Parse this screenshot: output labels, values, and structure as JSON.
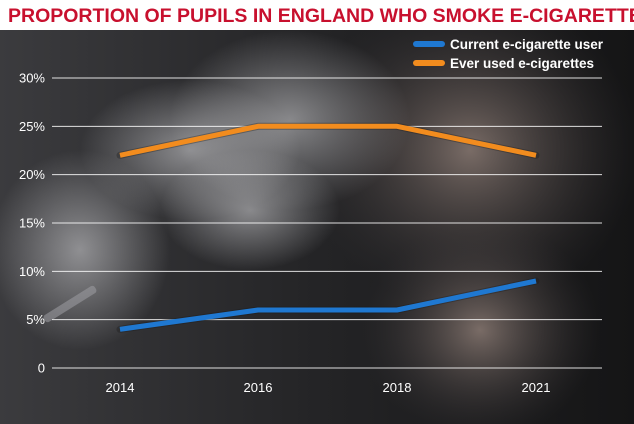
{
  "colors": {
    "title": "#c8102e",
    "background": "#ffffff",
    "grid": "#ffffff",
    "current": "#1f78d1",
    "ever": "#f28c1e"
  },
  "chart_data": {
    "type": "line",
    "title": "PROPORTION OF PUPILS IN ENGLAND WHO SMOKE E-CIGARETTES",
    "xlabel": "",
    "ylabel": "",
    "categories": [
      "2014",
      "2016",
      "2018",
      "2021"
    ],
    "ylim": [
      0,
      30
    ],
    "yticks": [
      "0",
      "5%",
      "10%",
      "15%",
      "20%",
      "25%",
      "30%"
    ],
    "grid": true,
    "legend_position": "top-right",
    "series": [
      {
        "name": "Current e-cigarette user",
        "values": [
          4,
          6,
          6,
          9
        ],
        "color": "#1f78d1"
      },
      {
        "name": "Ever used e-cigarettes",
        "values": [
          22,
          25,
          25,
          22
        ],
        "color": "#f28c1e"
      }
    ]
  }
}
